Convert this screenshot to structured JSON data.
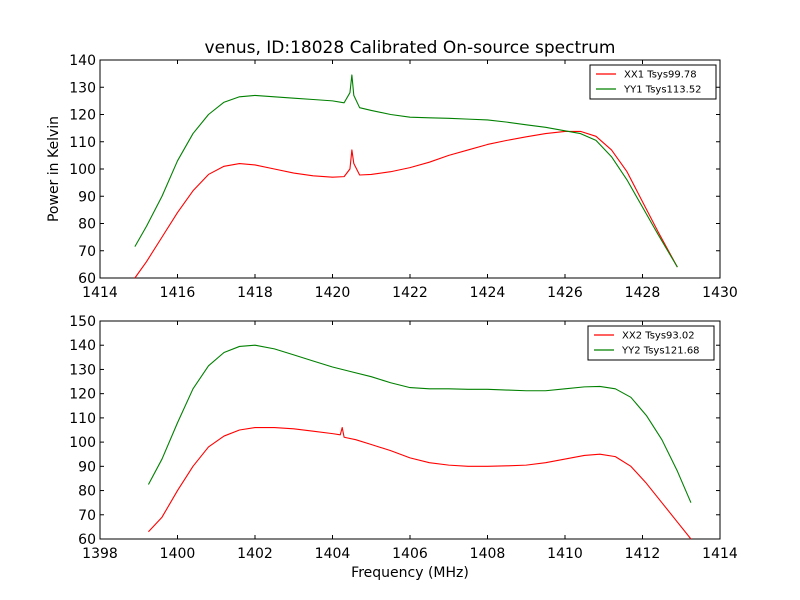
{
  "title": "venus, ID:18028 Calibrated On-source spectrum",
  "ylabel": "Power in Kelvin",
  "xlabel": "Frequency (MHz)",
  "colors": {
    "red": "#ff0000",
    "green": "#008000"
  },
  "chart_data": [
    {
      "type": "line",
      "xlim": [
        1414,
        1430
      ],
      "ylim": [
        60,
        140
      ],
      "xticks": [
        1414,
        1416,
        1418,
        1420,
        1422,
        1424,
        1426,
        1428,
        1430
      ],
      "yticks": [
        60,
        70,
        80,
        90,
        100,
        110,
        120,
        130,
        140
      ],
      "legend_position": "top-right",
      "series": [
        {
          "name": "XX1 Tsys99.78",
          "color": "#ff0000",
          "points": [
            [
              1414.9,
              60
            ],
            [
              1415.2,
              66
            ],
            [
              1415.6,
              75
            ],
            [
              1416.0,
              84
            ],
            [
              1416.4,
              92
            ],
            [
              1416.8,
              98
            ],
            [
              1417.2,
              101
            ],
            [
              1417.6,
              102
            ],
            [
              1418.0,
              101.5
            ],
            [
              1418.5,
              100
            ],
            [
              1419.0,
              98.5
            ],
            [
              1419.5,
              97.5
            ],
            [
              1420.0,
              97
            ],
            [
              1420.3,
              97.2
            ],
            [
              1420.45,
              100
            ],
            [
              1420.5,
              107
            ],
            [
              1420.55,
              102
            ],
            [
              1420.7,
              97.8
            ],
            [
              1421.0,
              98
            ],
            [
              1421.5,
              99
            ],
            [
              1422.0,
              100.5
            ],
            [
              1422.5,
              102.5
            ],
            [
              1423.0,
              105
            ],
            [
              1423.5,
              107
            ],
            [
              1424.0,
              109
            ],
            [
              1424.5,
              110.5
            ],
            [
              1425.0,
              111.8
            ],
            [
              1425.5,
              113
            ],
            [
              1426.0,
              113.8
            ],
            [
              1426.4,
              113.8
            ],
            [
              1426.8,
              112
            ],
            [
              1427.2,
              107
            ],
            [
              1427.6,
              99
            ],
            [
              1428.0,
              88
            ],
            [
              1428.4,
              77
            ],
            [
              1428.9,
              64
            ]
          ]
        },
        {
          "name": "YY1 Tsys113.52",
          "color": "#008000",
          "points": [
            [
              1414.9,
              71.5
            ],
            [
              1415.2,
              79
            ],
            [
              1415.6,
              90
            ],
            [
              1416.0,
              103
            ],
            [
              1416.4,
              113
            ],
            [
              1416.8,
              120
            ],
            [
              1417.2,
              124.5
            ],
            [
              1417.6,
              126.5
            ],
            [
              1418.0,
              127
            ],
            [
              1418.5,
              126.5
            ],
            [
              1419.0,
              126
            ],
            [
              1419.5,
              125.5
            ],
            [
              1420.0,
              125
            ],
            [
              1420.3,
              124.3
            ],
            [
              1420.45,
              128
            ],
            [
              1420.5,
              134.5
            ],
            [
              1420.55,
              127
            ],
            [
              1420.7,
              122.5
            ],
            [
              1421.0,
              121.5
            ],
            [
              1421.5,
              120
            ],
            [
              1422.0,
              119
            ],
            [
              1422.5,
              118.8
            ],
            [
              1423.0,
              118.6
            ],
            [
              1423.5,
              118.3
            ],
            [
              1424.0,
              118
            ],
            [
              1424.5,
              117.2
            ],
            [
              1425.0,
              116.2
            ],
            [
              1425.5,
              115.3
            ],
            [
              1426.0,
              114
            ],
            [
              1426.4,
              113
            ],
            [
              1426.8,
              110.5
            ],
            [
              1427.2,
              104.5
            ],
            [
              1427.6,
              96
            ],
            [
              1428.0,
              86
            ],
            [
              1428.4,
              76
            ],
            [
              1428.9,
              64
            ]
          ]
        }
      ]
    },
    {
      "type": "line",
      "xlim": [
        1398,
        1414
      ],
      "ylim": [
        60,
        150
      ],
      "xticks": [
        1398,
        1400,
        1402,
        1404,
        1406,
        1408,
        1410,
        1412,
        1414
      ],
      "yticks": [
        60,
        70,
        80,
        90,
        100,
        110,
        120,
        130,
        140,
        150
      ],
      "legend_position": "top-right",
      "series": [
        {
          "name": "XX2 Tsys93.02",
          "color": "#ff0000",
          "points": [
            [
              1399.25,
              63
            ],
            [
              1399.6,
              69
            ],
            [
              1400.0,
              80
            ],
            [
              1400.4,
              90
            ],
            [
              1400.8,
              98
            ],
            [
              1401.2,
              102.5
            ],
            [
              1401.6,
              105
            ],
            [
              1402.0,
              106
            ],
            [
              1402.5,
              106
            ],
            [
              1403.0,
              105.5
            ],
            [
              1403.5,
              104.5
            ],
            [
              1404.0,
              103.5
            ],
            [
              1404.2,
              103
            ],
            [
              1404.25,
              106
            ],
            [
              1404.3,
              102
            ],
            [
              1404.6,
              101
            ],
            [
              1405.0,
              99
            ],
            [
              1405.5,
              96.5
            ],
            [
              1406.0,
              93.5
            ],
            [
              1406.5,
              91.5
            ],
            [
              1407.0,
              90.5
            ],
            [
              1407.5,
              90
            ],
            [
              1408.0,
              90
            ],
            [
              1408.5,
              90.2
            ],
            [
              1409.0,
              90.5
            ],
            [
              1409.5,
              91.5
            ],
            [
              1410.0,
              93
            ],
            [
              1410.5,
              94.5
            ],
            [
              1410.9,
              95
            ],
            [
              1411.3,
              94
            ],
            [
              1411.7,
              90
            ],
            [
              1412.1,
              83
            ],
            [
              1412.5,
              75
            ],
            [
              1412.9,
              67
            ],
            [
              1413.25,
              60
            ]
          ]
        },
        {
          "name": "YY2 Tsys121.68",
          "color": "#008000",
          "points": [
            [
              1399.25,
              82.5
            ],
            [
              1399.6,
              93
            ],
            [
              1400.0,
              108
            ],
            [
              1400.4,
              122
            ],
            [
              1400.8,
              131.5
            ],
            [
              1401.2,
              137
            ],
            [
              1401.6,
              139.5
            ],
            [
              1402.0,
              140
            ],
            [
              1402.5,
              138.5
            ],
            [
              1403.0,
              136
            ],
            [
              1403.5,
              133.5
            ],
            [
              1404.0,
              131
            ],
            [
              1404.5,
              129
            ],
            [
              1405.0,
              127
            ],
            [
              1405.5,
              124.5
            ],
            [
              1406.0,
              122.5
            ],
            [
              1406.5,
              122
            ],
            [
              1407.0,
              122
            ],
            [
              1407.5,
              121.8
            ],
            [
              1408.0,
              121.8
            ],
            [
              1408.5,
              121.5
            ],
            [
              1409.0,
              121.2
            ],
            [
              1409.5,
              121.2
            ],
            [
              1410.0,
              122
            ],
            [
              1410.5,
              122.8
            ],
            [
              1410.9,
              123
            ],
            [
              1411.3,
              122
            ],
            [
              1411.7,
              118.5
            ],
            [
              1412.1,
              111
            ],
            [
              1412.5,
              101
            ],
            [
              1412.9,
              88
            ],
            [
              1413.25,
              75
            ]
          ]
        }
      ]
    }
  ]
}
